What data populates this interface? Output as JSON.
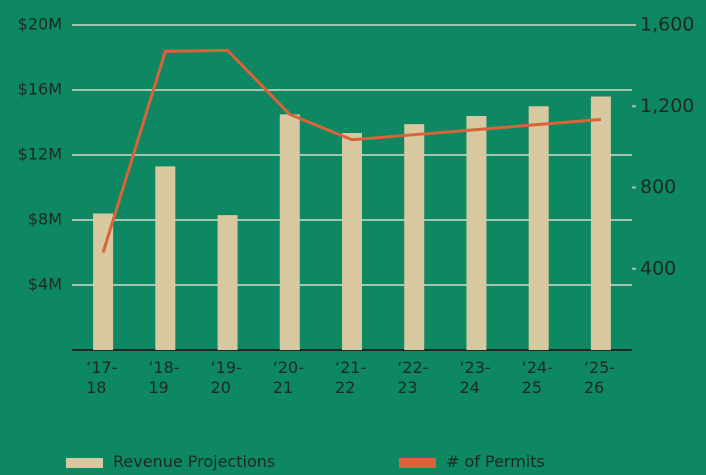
{
  "chart_data": {
    "type": "bar_line",
    "categories": [
      "‘17-18",
      "‘18-19",
      "‘19-20",
      "‘20-21",
      "‘21-22",
      "‘22-23",
      "‘23-24",
      "‘24-25",
      "‘25-26"
    ],
    "series": [
      {
        "name": "Revenue Projections",
        "color": "#d8c8a0",
        "type": "bar",
        "values": [
          8400000,
          11300000,
          8300000,
          14500000,
          13350000,
          13900000,
          14400000,
          15000000,
          15600000
        ]
      },
      {
        "name": "# of Permits",
        "color": "#d9643a",
        "type": "line",
        "axis": "y2",
        "values": [
          480,
          1470,
          1475,
          1160,
          1035,
          1060,
          1085,
          1110,
          1135
        ]
      }
    ],
    "ylim": [
      0,
      20000000
    ],
    "yticks": [
      {
        "value": 4000000,
        "label": "$4M"
      },
      {
        "value": 8000000,
        "label": "$8M"
      },
      {
        "value": 12000000,
        "label": "$12M"
      },
      {
        "value": 16000000,
        "label": "$16M"
      },
      {
        "value": 20000000,
        "label": "$20M"
      }
    ],
    "y2lim": [
      0,
      1600
    ],
    "y2ticks": [
      400,
      800,
      {
        "value": 1200,
        "label": "1,200"
      },
      {
        "value": 1600,
        "label": "1,600"
      }
    ],
    "grid": true,
    "legend": "bottom"
  }
}
